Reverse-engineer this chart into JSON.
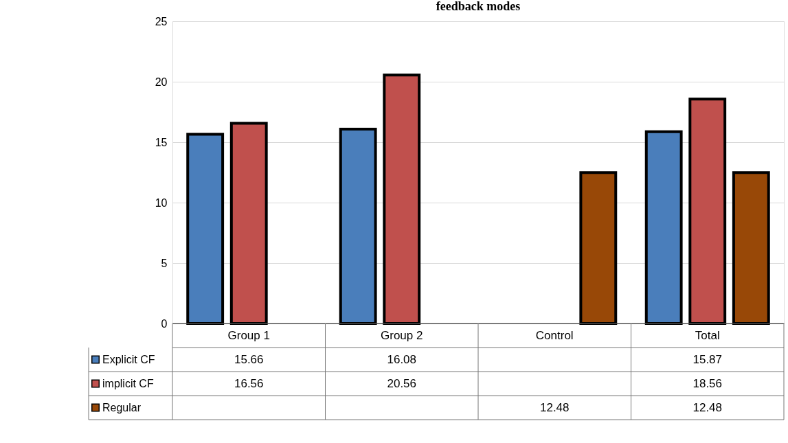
{
  "chart_data": {
    "type": "bar",
    "title": "feedback modes",
    "categories": [
      "Group 1",
      "Group 2",
      "Control",
      "Total"
    ],
    "series": [
      {
        "name": "Explicit CF",
        "color": "#4a7ebb",
        "values": [
          15.66,
          16.08,
          null,
          15.87
        ]
      },
      {
        "name": "implicit CF",
        "color": "#c0504d",
        "values": [
          16.56,
          20.56,
          null,
          18.56
        ]
      },
      {
        "name": "Regular",
        "color": "#984807",
        "values": [
          null,
          null,
          12.48,
          12.48
        ]
      }
    ],
    "ylim": [
      0,
      25
    ],
    "yticks": [
      0,
      5,
      10,
      15,
      20,
      25
    ],
    "grid": "y",
    "legend": "bottom",
    "data_labels": true
  }
}
